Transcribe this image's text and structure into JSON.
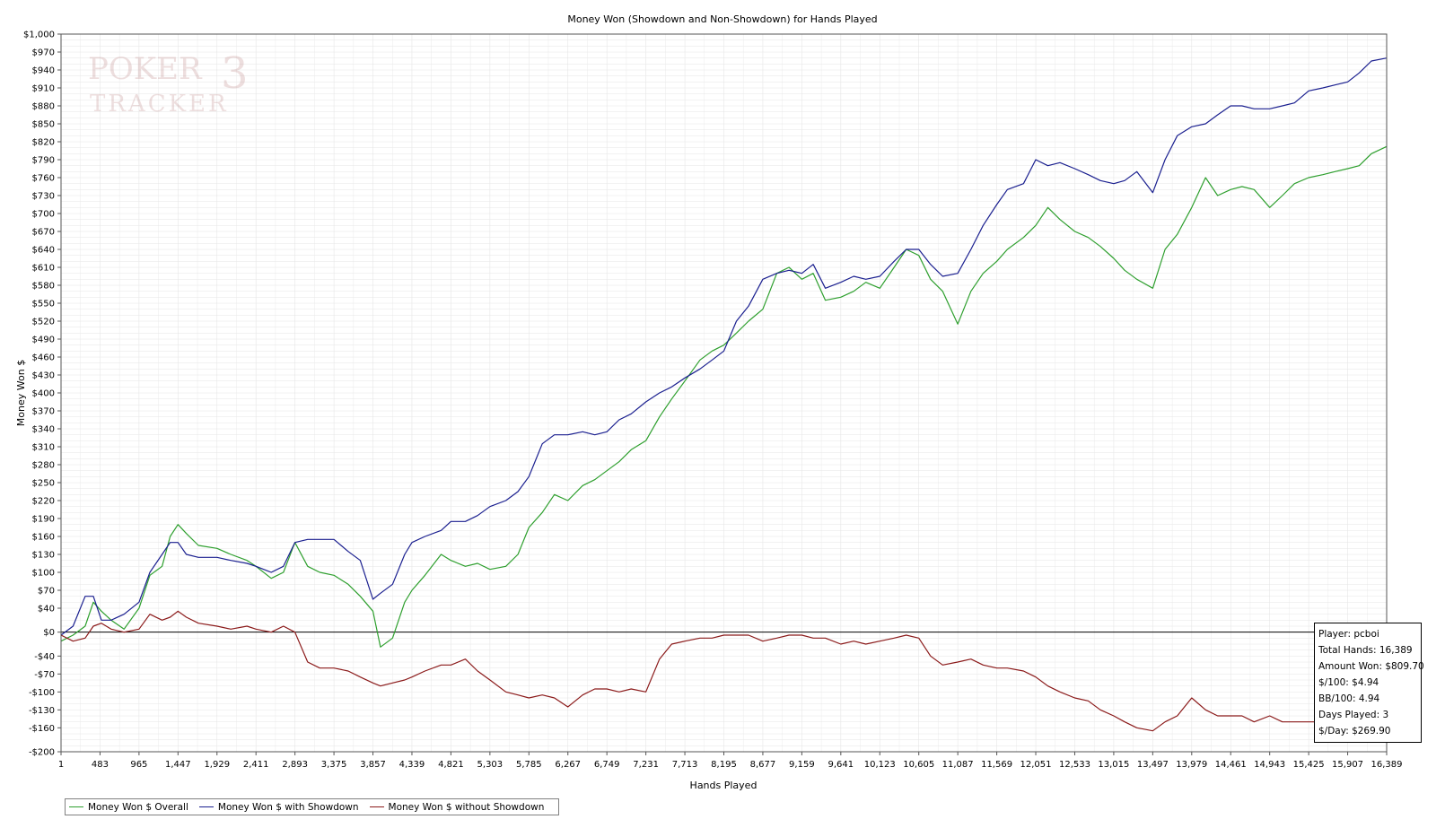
{
  "colors": {
    "overall": "#2e9f2e",
    "showdown": "#1a1f8f",
    "non_showdown": "#8b1a1a",
    "grid": "#e6e6e6",
    "zero_line": "#000000",
    "watermark": "#c9a0a0"
  },
  "watermark": {
    "line1": "POKER",
    "line2": "TRACKER",
    "mark": "3"
  },
  "legend": {
    "overall": "Money Won $ Overall",
    "showdown": "Money Won $ with Showdown",
    "non_showdown": "Money Won $ without Showdown"
  },
  "stats": {
    "player": "Player: pcboi",
    "total_hands": "Total Hands: 16,389",
    "amount_won": "Amount Won: $809.70",
    "per_100": "$/100: $4.94",
    "bb_100": "BB/100: 4.94",
    "days_played": "Days Played: 3",
    "per_day": "$/Day: $269.90"
  },
  "chart_data": {
    "type": "line",
    "title": "Money Won (Showdown and Non-Showdown) for Hands Played",
    "xlabel": "Hands Played",
    "ylabel": "Money Won $",
    "xlim": [
      1,
      16389
    ],
    "ylim": [
      -200,
      1000
    ],
    "grid": true,
    "legend_position": "bottom-left",
    "x_ticks": [
      1,
      483,
      965,
      1447,
      1929,
      2411,
      2893,
      3375,
      3857,
      4339,
      4821,
      5303,
      5785,
      6267,
      6749,
      7231,
      7713,
      8195,
      8677,
      9159,
      9641,
      10123,
      10605,
      11087,
      11569,
      12051,
      12533,
      13015,
      13497,
      13979,
      14461,
      14943,
      15425,
      15907,
      16389
    ],
    "x_tick_labels": [
      "1",
      "483",
      "965",
      "1,447",
      "1,929",
      "2,411",
      "2,893",
      "3,375",
      "3,857",
      "4,339",
      "4,821",
      "5,303",
      "5,785",
      "6,267",
      "6,749",
      "7,231",
      "7,713",
      "8,195",
      "8,677",
      "9,159",
      "9,641",
      "10,123",
      "10,605",
      "11,087",
      "11,569",
      "12,051",
      "12,533",
      "13,015",
      "13,497",
      "13,979",
      "14,461",
      "14,943",
      "15,425",
      "15,907",
      "16,389"
    ],
    "y_ticks": [
      1000,
      970,
      940,
      910,
      880,
      850,
      820,
      790,
      760,
      730,
      700,
      670,
      640,
      610,
      580,
      550,
      520,
      490,
      460,
      430,
      400,
      370,
      340,
      310,
      280,
      250,
      220,
      190,
      160,
      130,
      100,
      70,
      40,
      0,
      -40,
      -70,
      -100,
      -130,
      -160,
      -200
    ],
    "y_tick_labels": [
      "$1,000",
      "$970",
      "$940",
      "$910",
      "$880",
      "$850",
      "$820",
      "$790",
      "$760",
      "$730",
      "$700",
      "$670",
      "$640",
      "$610",
      "$580",
      "$550",
      "$520",
      "$490",
      "$460",
      "$430",
      "$400",
      "$370",
      "$340",
      "$310",
      "$280",
      "$250",
      "$220",
      "$190",
      "$160",
      "$130",
      "$100",
      "$70",
      "$40",
      "$0",
      "-$40",
      "-$70",
      "-$100",
      "-$130",
      "-$160",
      "-$200"
    ],
    "series": [
      {
        "name": "Money Won $ Overall",
        "x": [
          1,
          150,
          300,
          400,
          500,
          620,
          780,
          965,
          1100,
          1250,
          1350,
          1447,
          1550,
          1700,
          1929,
          2100,
          2300,
          2411,
          2600,
          2750,
          2893,
          3050,
          3200,
          3375,
          3550,
          3700,
          3857,
          3950,
          4100,
          4250,
          4339,
          4500,
          4700,
          4821,
          5000,
          5150,
          5303,
          5500,
          5650,
          5785,
          5950,
          6100,
          6267,
          6450,
          6600,
          6749,
          6900,
          7050,
          7231,
          7400,
          7550,
          7713,
          7900,
          8050,
          8195,
          8350,
          8500,
          8677,
          8850,
          9000,
          9159,
          9300,
          9450,
          9641,
          9800,
          9950,
          10123,
          10300,
          10450,
          10605,
          10750,
          10900,
          11087,
          11250,
          11400,
          11569,
          11700,
          11900,
          12051,
          12200,
          12350,
          12533,
          12700,
          12850,
          13015,
          13150,
          13300,
          13497,
          13650,
          13800,
          13979,
          14150,
          14300,
          14461,
          14600,
          14750,
          14943,
          15100,
          15250,
          15425,
          15600,
          15750,
          15907,
          16050,
          16200,
          16389
        ],
        "values": [
          -15,
          -5,
          10,
          50,
          35,
          20,
          5,
          40,
          95,
          110,
          160,
          180,
          165,
          145,
          140,
          130,
          120,
          110,
          90,
          100,
          150,
          110,
          100,
          95,
          80,
          60,
          35,
          -25,
          -10,
          50,
          70,
          95,
          130,
          120,
          110,
          115,
          105,
          110,
          130,
          175,
          200,
          230,
          220,
          245,
          255,
          270,
          285,
          305,
          320,
          360,
          390,
          420,
          455,
          470,
          480,
          500,
          520,
          540,
          600,
          610,
          590,
          600,
          555,
          560,
          570,
          585,
          575,
          610,
          640,
          630,
          590,
          570,
          515,
          570,
          600,
          620,
          640,
          660,
          680,
          710,
          690,
          670,
          660,
          645,
          625,
          605,
          590,
          575,
          640,
          665,
          710,
          760,
          730,
          740,
          745,
          740,
          710,
          730,
          750,
          760,
          765,
          770,
          775,
          780,
          800,
          812
        ]
      },
      {
        "name": "Money Won $ with Showdown",
        "x": [
          1,
          150,
          300,
          400,
          500,
          620,
          780,
          965,
          1100,
          1250,
          1350,
          1447,
          1550,
          1700,
          1929,
          2100,
          2300,
          2411,
          2600,
          2750,
          2893,
          3050,
          3200,
          3375,
          3550,
          3700,
          3857,
          3950,
          4100,
          4250,
          4339,
          4500,
          4700,
          4821,
          5000,
          5150,
          5303,
          5500,
          5650,
          5785,
          5950,
          6100,
          6267,
          6450,
          6600,
          6749,
          6900,
          7050,
          7231,
          7400,
          7550,
          7713,
          7900,
          8050,
          8195,
          8350,
          8500,
          8677,
          8850,
          9000,
          9159,
          9300,
          9450,
          9641,
          9800,
          9950,
          10123,
          10300,
          10450,
          10605,
          10750,
          10900,
          11087,
          11250,
          11400,
          11569,
          11700,
          11900,
          12051,
          12200,
          12350,
          12533,
          12700,
          12850,
          13015,
          13150,
          13300,
          13497,
          13650,
          13800,
          13979,
          14150,
          14300,
          14461,
          14600,
          14750,
          14943,
          15100,
          15250,
          15425,
          15600,
          15750,
          15907,
          16050,
          16200,
          16389
        ],
        "values": [
          -5,
          10,
          60,
          60,
          20,
          20,
          30,
          50,
          100,
          130,
          150,
          150,
          130,
          125,
          125,
          120,
          115,
          110,
          100,
          110,
          150,
          155,
          155,
          155,
          135,
          120,
          55,
          65,
          80,
          130,
          150,
          160,
          170,
          185,
          185,
          195,
          210,
          220,
          235,
          260,
          315,
          330,
          330,
          335,
          330,
          335,
          355,
          365,
          385,
          400,
          410,
          425,
          440,
          455,
          470,
          520,
          545,
          590,
          600,
          605,
          600,
          615,
          575,
          585,
          595,
          590,
          595,
          620,
          640,
          640,
          615,
          595,
          600,
          640,
          680,
          715,
          740,
          750,
          790,
          780,
          785,
          775,
          765,
          755,
          750,
          755,
          770,
          735,
          790,
          830,
          845,
          850,
          865,
          880,
          880,
          875,
          875,
          880,
          885,
          905,
          910,
          915,
          920,
          935,
          955,
          960
        ]
      },
      {
        "name": "Money Won $ without Showdown",
        "x": [
          1,
          150,
          300,
          400,
          500,
          620,
          780,
          965,
          1100,
          1250,
          1350,
          1447,
          1550,
          1700,
          1929,
          2100,
          2300,
          2411,
          2600,
          2750,
          2893,
          3050,
          3200,
          3375,
          3550,
          3700,
          3857,
          3950,
          4100,
          4250,
          4339,
          4500,
          4700,
          4821,
          5000,
          5150,
          5303,
          5500,
          5650,
          5785,
          5950,
          6100,
          6267,
          6450,
          6600,
          6749,
          6900,
          7050,
          7231,
          7400,
          7550,
          7713,
          7900,
          8050,
          8195,
          8350,
          8500,
          8677,
          8850,
          9000,
          9159,
          9300,
          9450,
          9641,
          9800,
          9950,
          10123,
          10300,
          10450,
          10605,
          10750,
          10900,
          11087,
          11250,
          11400,
          11569,
          11700,
          11900,
          12051,
          12200,
          12350,
          12533,
          12700,
          12850,
          13015,
          13150,
          13300,
          13497,
          13650,
          13800,
          13979,
          14150,
          14300,
          14461,
          14600,
          14750,
          14943,
          15100,
          15250,
          15425,
          15600,
          15750,
          15907,
          16050,
          16200,
          16389
        ],
        "values": [
          -5,
          -15,
          -10,
          10,
          15,
          5,
          0,
          5,
          30,
          20,
          25,
          35,
          25,
          15,
          10,
          5,
          10,
          5,
          0,
          10,
          0,
          -50,
          -60,
          -60,
          -65,
          -75,
          -85,
          -90,
          -85,
          -80,
          -75,
          -65,
          -55,
          -55,
          -45,
          -65,
          -80,
          -100,
          -105,
          -110,
          -105,
          -110,
          -125,
          -105,
          -95,
          -95,
          -100,
          -95,
          -100,
          -45,
          -20,
          -15,
          -10,
          -10,
          -5,
          -5,
          -5,
          -15,
          -10,
          -5,
          -5,
          -10,
          -10,
          -20,
          -15,
          -20,
          -15,
          -10,
          -5,
          -10,
          -40,
          -55,
          -50,
          -45,
          -55,
          -60,
          -60,
          -65,
          -75,
          -90,
          -100,
          -110,
          -115,
          -130,
          -140,
          -150,
          -160,
          -165,
          -150,
          -140,
          -110,
          -130,
          -140,
          -140,
          -140,
          -150,
          -140,
          -150,
          -150,
          -150,
          -150,
          -145,
          -145,
          -145,
          -150,
          -150
        ]
      }
    ]
  }
}
